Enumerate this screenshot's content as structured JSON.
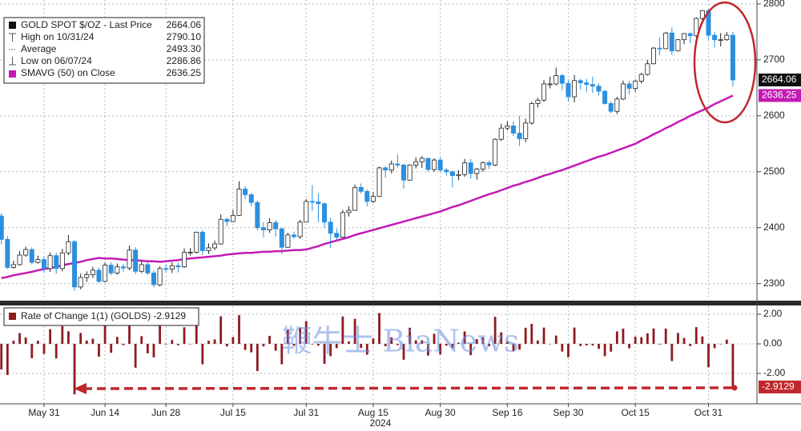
{
  "chart_data": [
    {
      "type": "candlestick",
      "legend": [
        {
          "label": "GOLD SPOT $/OZ - Last Price",
          "value": "2664.06"
        },
        {
          "label": "High on 10/31/24",
          "value": "2790.10"
        },
        {
          "label": "Average",
          "value": "2493.30"
        },
        {
          "label": "Low on 06/07/24",
          "value": "2286.86"
        },
        {
          "label": "SMAVG (50) on Close",
          "value": "2636.25"
        }
      ],
      "categories": [
        null,
        null,
        null,
        null,
        null,
        null,
        null,
        "May 31",
        null,
        null,
        null,
        null,
        null,
        null,
        null,
        null,
        null,
        "Jun 14",
        null,
        null,
        null,
        null,
        null,
        null,
        null,
        null,
        null,
        "Jun 28",
        null,
        null,
        null,
        null,
        null,
        null,
        null,
        null,
        null,
        null,
        "Jul 15",
        null,
        null,
        null,
        null,
        null,
        null,
        null,
        null,
        null,
        null,
        null,
        "Jul 31",
        null,
        null,
        null,
        null,
        null,
        null,
        null,
        null,
        null,
        null,
        "Aug 15",
        null,
        null,
        null,
        null,
        null,
        null,
        null,
        null,
        null,
        null,
        "Aug 30",
        null,
        null,
        null,
        null,
        null,
        null,
        null,
        null,
        null,
        null,
        "Sep 16",
        null,
        null,
        null,
        null,
        null,
        null,
        null,
        null,
        null,
        "Sep 30",
        null,
        null,
        null,
        null,
        null,
        null,
        null,
        null,
        null,
        null,
        "Oct 15",
        null,
        null,
        null,
        null,
        null,
        null,
        null,
        null,
        null,
        null,
        null,
        "Oct 31",
        null,
        null,
        null,
        null
      ],
      "year_label": "2024",
      "open": [
        2421,
        2379,
        2329,
        2334,
        2351,
        2361,
        2338,
        2343,
        2327,
        2350,
        2327,
        2355,
        2375,
        2294,
        2311,
        2316,
        2324,
        2304,
        2333,
        2319,
        2330,
        2328,
        2360,
        2322,
        2334,
        2319,
        2298,
        2327,
        2326,
        2332,
        2330,
        2356,
        2356,
        2392,
        2359,
        2364,
        2371,
        2415,
        2411,
        2422,
        2469,
        2459,
        2445,
        2400,
        2396,
        2409,
        2398,
        2365,
        2387,
        2384,
        2410,
        2447,
        2446,
        2443,
        2410,
        2390,
        2383,
        2427,
        2431,
        2472,
        2465,
        2447,
        2456,
        2507,
        2503,
        2514,
        2512,
        2485,
        2512,
        2518,
        2524,
        2504,
        2521,
        2503,
        2500,
        2493,
        2495,
        2516,
        2497,
        2505,
        2516,
        2512,
        2558,
        2578,
        2582,
        2569,
        2559,
        2587,
        2622,
        2628,
        2657,
        2657,
        2672,
        2658,
        2634,
        2663,
        2659,
        2656,
        2653,
        2644,
        2622,
        2608,
        2630,
        2657,
        2649,
        2662,
        2674,
        2693,
        2721,
        2720,
        2748,
        2716,
        2736,
        2747,
        2743,
        2774,
        2788,
        2744,
        2736,
        2736,
        2744
      ],
      "high": [
        2426,
        2385,
        2341,
        2358,
        2366,
        2365,
        2350,
        2349,
        2356,
        2355,
        2362,
        2387,
        2378,
        2318,
        2322,
        2330,
        2329,
        2338,
        2338,
        2336,
        2335,
        2368,
        2365,
        2340,
        2338,
        2324,
        2331,
        2334,
        2338,
        2337,
        2363,
        2364,
        2393,
        2396,
        2372,
        2377,
        2424,
        2418,
        2432,
        2483,
        2474,
        2462,
        2449,
        2410,
        2417,
        2414,
        2400,
        2391,
        2393,
        2414,
        2451,
        2476,
        2461,
        2445,
        2418,
        2398,
        2432,
        2438,
        2477,
        2479,
        2468,
        2464,
        2509,
        2510,
        2520,
        2531,
        2514,
        2513,
        2526,
        2528,
        2525,
        2524,
        2526,
        2507,
        2502,
        2503,
        2523,
        2523,
        2507,
        2518,
        2520,
        2560,
        2586,
        2590,
        2590,
        2600,
        2595,
        2625,
        2632,
        2664,
        2670,
        2686,
        2675,
        2665,
        2673,
        2666,
        2666,
        2670,
        2658,
        2646,
        2626,
        2634,
        2663,
        2662,
        2665,
        2677,
        2700,
        2723,
        2740,
        2750,
        2758,
        2737,
        2748,
        2749,
        2776,
        2789,
        2790.1,
        2750,
        2748,
        2750,
        2750
      ],
      "low": [
        2370,
        2326,
        2327,
        2332,
        2348,
        2334,
        2336,
        2320,
        2321,
        2318,
        2322,
        2351,
        2286.86,
        2290,
        2303,
        2310,
        2301,
        2302,
        2315,
        2316,
        2321,
        2324,
        2317,
        2319,
        2316,
        2293,
        2295,
        2320,
        2319,
        2320,
        2328,
        2350,
        2354,
        2351,
        2353,
        2360,
        2370,
        2402,
        2410,
        2421,
        2451,
        2438,
        2395,
        2383,
        2391,
        2384,
        2353,
        2364,
        2380,
        2380,
        2410,
        2430,
        2410,
        2400,
        2364,
        2378,
        2382,
        2420,
        2430,
        2461,
        2438,
        2444,
        2455,
        2489,
        2497,
        2507,
        2470,
        2484,
        2506,
        2507,
        2500,
        2500,
        2500,
        2493,
        2472,
        2485,
        2491,
        2488,
        2486,
        2500,
        2505,
        2510,
        2555,
        2574,
        2564,
        2546,
        2553,
        2584,
        2615,
        2625,
        2649,
        2654,
        2646,
        2625,
        2624,
        2647,
        2642,
        2641,
        2637,
        2620,
        2604,
        2603,
        2628,
        2638,
        2643,
        2658,
        2672,
        2692,
        2708,
        2719,
        2709,
        2715,
        2728,
        2730,
        2740,
        2765,
        2736,
        2722,
        2724,
        2734,
        2652
      ],
      "close": [
        2379,
        2329,
        2334,
        2351,
        2361,
        2338,
        2343,
        2327,
        2350,
        2327,
        2355,
        2375,
        2294,
        2311,
        2316,
        2324,
        2304,
        2333,
        2319,
        2330,
        2328,
        2360,
        2322,
        2334,
        2319,
        2298,
        2327,
        2326,
        2332,
        2330,
        2356,
        2356,
        2392,
        2359,
        2364,
        2371,
        2415,
        2411,
        2422,
        2469,
        2459,
        2445,
        2400,
        2396,
        2409,
        2398,
        2365,
        2387,
        2384,
        2410,
        2447,
        2446,
        2443,
        2410,
        2390,
        2383,
        2427,
        2431,
        2472,
        2465,
        2447,
        2456,
        2507,
        2503,
        2514,
        2512,
        2485,
        2512,
        2518,
        2524,
        2504,
        2521,
        2503,
        2500,
        2493,
        2495,
        2516,
        2497,
        2505,
        2516,
        2512,
        2558,
        2578,
        2582,
        2569,
        2559,
        2587,
        2622,
        2628,
        2657,
        2657,
        2672,
        2658,
        2634,
        2663,
        2659,
        2656,
        2653,
        2644,
        2622,
        2608,
        2630,
        2657,
        2649,
        2662,
        2674,
        2693,
        2721,
        2720,
        2748,
        2716,
        2736,
        2747,
        2743,
        2774,
        2788,
        2744,
        2736,
        2736,
        2744,
        2664.06
      ],
      "up_color": "#ffffff",
      "down_color": "#2b8fe0",
      "overlay": {
        "name": "SMAVG (50) on Close",
        "color": "#c41ab4",
        "values": [
          2310,
          2312,
          2315,
          2317,
          2319,
          2321,
          2324,
          2326,
          2328,
          2330,
          2333,
          2335,
          2337,
          2339,
          2342,
          2344,
          2346,
          2345,
          2345,
          2344,
          2343,
          2342,
          2342,
          2341,
          2340,
          2340,
          2339,
          2340,
          2341,
          2342,
          2344,
          2345,
          2346,
          2347,
          2348,
          2349,
          2350,
          2352,
          2353,
          2354,
          2355,
          2355,
          2356,
          2357,
          2357,
          2358,
          2358,
          2359,
          2360,
          2360,
          2361,
          2364,
          2367,
          2371,
          2374,
          2377,
          2380,
          2383,
          2387,
          2390,
          2393,
          2396,
          2399,
          2402,
          2405,
          2408,
          2411,
          2414,
          2417,
          2420,
          2423,
          2426,
          2429,
          2433,
          2437,
          2440,
          2444,
          2448,
          2452,
          2456,
          2460,
          2463,
          2467,
          2471,
          2475,
          2478,
          2482,
          2485,
          2489,
          2493,
          2496,
          2500,
          2503,
          2507,
          2511,
          2515,
          2519,
          2523,
          2527,
          2530,
          2534,
          2538,
          2542,
          2546,
          2550,
          2556,
          2561,
          2567,
          2572,
          2578,
          2583,
          2589,
          2594,
          2600,
          2605,
          2610,
          2615,
          2621,
          2626,
          2631,
          2636.25
        ]
      },
      "ylim": [
        2271,
        2807
      ],
      "yticks": [
        2300,
        2400,
        2500,
        2600,
        2700,
        2800
      ],
      "grid": true
    },
    {
      "type": "bar",
      "title": "Rate of Change 1(1) (GOLDS) -2.9129",
      "color": "#8e1b1f",
      "values": [
        -1.73,
        -2.1,
        0.21,
        0.73,
        0.43,
        -0.97,
        0.21,
        -0.68,
        0.99,
        -0.98,
        1.2,
        0.85,
        -3.41,
        0.74,
        0.22,
        0.35,
        -0.86,
        1.26,
        -0.6,
        0.47,
        -0.09,
        1.37,
        -1.61,
        0.52,
        -0.64,
        -0.91,
        1.26,
        -0.04,
        0.26,
        -0.09,
        1.12,
        0,
        1.53,
        -1.38,
        0.21,
        0.3,
        1.86,
        -0.17,
        0.46,
        1.94,
        -0.41,
        -0.57,
        -1.84,
        -0.17,
        0.54,
        -0.46,
        -1.38,
        0.93,
        -0.13,
        1.09,
        1.54,
        -0.04,
        -0.12,
        -1.35,
        -0.83,
        -0.29,
        1.85,
        0.16,
        1.69,
        -0.28,
        -0.73,
        0.37,
        2.08,
        -0.16,
        0.44,
        -0.08,
        -1.07,
        1.09,
        0.24,
        0.24,
        -0.79,
        0.68,
        -0.71,
        -0.12,
        -0.28,
        0.08,
        0.84,
        -0.76,
        0.32,
        0.44,
        -0.16,
        1.83,
        0.78,
        0.16,
        -0.5,
        -0.39,
        1.09,
        1.35,
        0.23,
        1.1,
        0,
        0.56,
        -0.52,
        -0.9,
        1.1,
        -0.15,
        -0.11,
        -0.11,
        -0.34,
        -0.83,
        -0.53,
        0.84,
        1.03,
        -0.3,
        0.49,
        0.45,
        0.71,
        1.04,
        -0.04,
        1.03,
        -1.16,
        0.74,
        0.4,
        -0.15,
        1.13,
        0.5,
        -1.58,
        -0.29,
        0,
        0.29,
        -2.9129
      ],
      "ylim": [
        -4.05,
        2.54
      ],
      "yticks": [
        {
          "value": 2,
          "label": "2.00"
        },
        {
          "value": 0,
          "label": "0.00"
        },
        {
          "value": -2,
          "label": "-2.00"
        }
      ],
      "grid": true
    }
  ],
  "watermark": "鞭牛士 BiaNews"
}
